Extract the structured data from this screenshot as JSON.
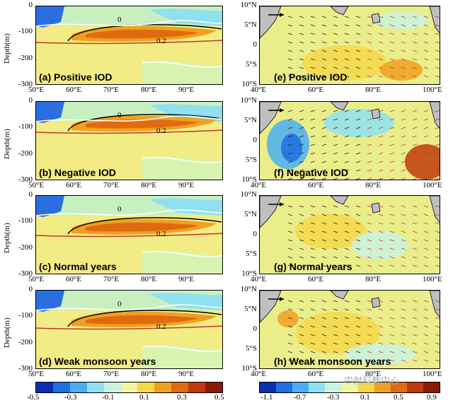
{
  "left_panels": [
    {
      "label": "(a) Positive IOD",
      "c0": "0",
      "c02": "0.2"
    },
    {
      "label": "(b) Negative IOD",
      "c0": "0",
      "c02": "0.2"
    },
    {
      "label": "(c) Normal years",
      "c0": "0",
      "c02": "0.2"
    },
    {
      "label": "(d) Weak monsoon years",
      "c0": "0",
      "c02": "0.2"
    }
  ],
  "right_panels": [
    {
      "label": "(e) Positive IOD"
    },
    {
      "label": "(f) Negative IOD"
    },
    {
      "label": "(g) Normal years"
    },
    {
      "label": "(h) Weak monsoon years"
    }
  ],
  "left_yticks": [
    "0",
    "-100",
    "-200",
    "-300"
  ],
  "left_ylabel": "Depth(m)",
  "left_xticks": [
    "50°E",
    "60°E",
    "70°E",
    "80°E",
    "90°E"
  ],
  "right_yticks": [
    "10°N",
    "5°N",
    "0",
    "5°S",
    "10°S"
  ],
  "right_xticks": [
    "40°E",
    "60°E",
    "80°E",
    "100°E"
  ],
  "left_colorbar_ticks": [
    "-0.5",
    "-0.3",
    "-0.1",
    "0.1",
    "0.3",
    "0.5"
  ],
  "right_colorbar_ticks": [
    "-1.1",
    "-0.7",
    "-0.3",
    "0.1",
    "0.5",
    "0.9"
  ],
  "colors": [
    "#0a2fb0",
    "#1f6fe0",
    "#4aaef0",
    "#8fe0f0",
    "#c9f2e0",
    "#f3f3a0",
    "#f5d84a",
    "#f0a020",
    "#e06a10",
    "#c0390a",
    "#8a1a05"
  ],
  "watermark": "中射科教中心"
}
